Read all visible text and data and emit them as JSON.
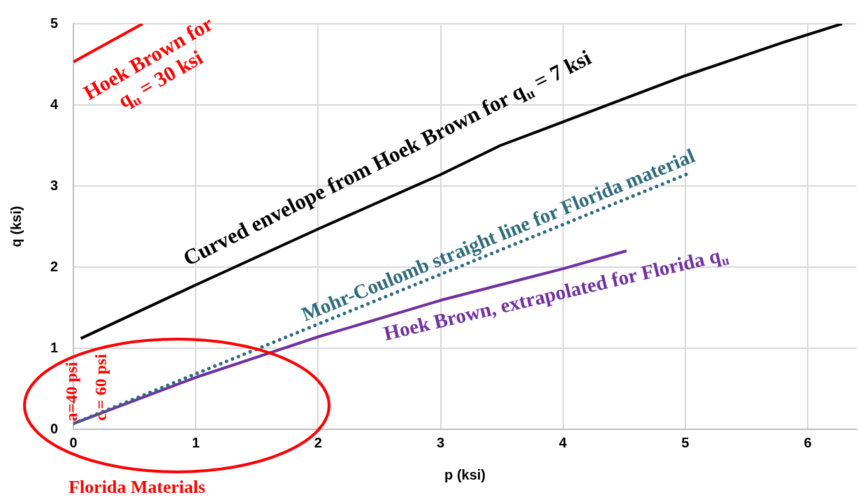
{
  "chart_data": {
    "type": "line",
    "xlabel": "p (ksi)",
    "ylabel": "q (ksi)",
    "xlim": [
      0,
      6.4
    ],
    "xticks": [
      0,
      1,
      2,
      3,
      4,
      5,
      6
    ],
    "ylim": [
      0,
      5
    ],
    "yticks": [
      0,
      1,
      2,
      3,
      4,
      5
    ],
    "grid": true,
    "legend": false,
    "marker": "none",
    "series": [
      {
        "name": "Hoek Brown for q$_{u}$ = 30 ksi",
        "color": "#ff0000",
        "x": [
          0,
          0.565
        ],
        "values": [
          4.53,
          5
        ]
      },
      {
        "name": "Curved envelope from Hoek Brown for q$_{u}$ = 7 ksi",
        "color": "#000000",
        "x": [
          0.06,
          1,
          2,
          3,
          3.49,
          4,
          5,
          5.8,
          6.28
        ],
        "values": [
          1.12,
          1.78,
          2.47,
          3.14,
          3.5,
          3.79,
          4.36,
          4.77,
          5
        ]
      },
      {
        "name": "Mohr-Coulomb straight line for Florida material",
        "color": "#2e6b7a",
        "line_style": "dotted",
        "x": [
          0,
          5.02
        ],
        "values": [
          0.07,
          3.15
        ]
      },
      {
        "name": "Hoek Brown, extrapolated for Florida q$_{u}$",
        "color": "#7030a0",
        "x": [
          0,
          1,
          2,
          3,
          4,
          4.52
        ],
        "values": [
          0.07,
          0.64,
          1.14,
          1.59,
          1.98,
          2.2
        ]
      }
    ],
    "annotations": [
      "a=40 psi",
      "c = 60 psi",
      "Florida Materials"
    ]
  }
}
